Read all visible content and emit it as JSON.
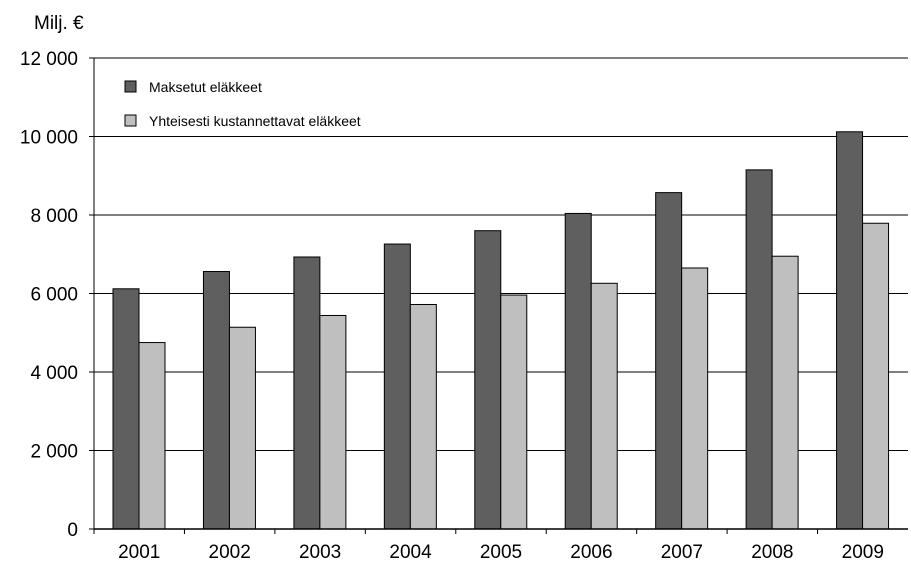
{
  "chart_data": {
    "type": "bar",
    "ylabel": "Milj. €",
    "categories": [
      "2001",
      "2002",
      "2003",
      "2004",
      "2005",
      "2006",
      "2007",
      "2008",
      "2009"
    ],
    "series": [
      {
        "name": "Maksetut eläkkeet",
        "color": "#5f5f5f",
        "values": [
          6120,
          6560,
          6930,
          7260,
          7600,
          8040,
          8570,
          9150,
          10120
        ]
      },
      {
        "name": "Yhteisesti kustannettavat eläkkeet",
        "color": "#bfbfbf",
        "values": [
          4750,
          5140,
          5440,
          5720,
          5960,
          6260,
          6650,
          6950,
          7790
        ]
      }
    ],
    "ylim": [
      0,
      12000
    ],
    "yticks": [
      0,
      2000,
      4000,
      6000,
      8000,
      10000,
      12000
    ],
    "ytick_labels": [
      "0",
      "2 000",
      "4 000",
      "6 000",
      "8 000",
      "10 000",
      "12 000"
    ],
    "grid": true,
    "legend_position": "top-left"
  }
}
